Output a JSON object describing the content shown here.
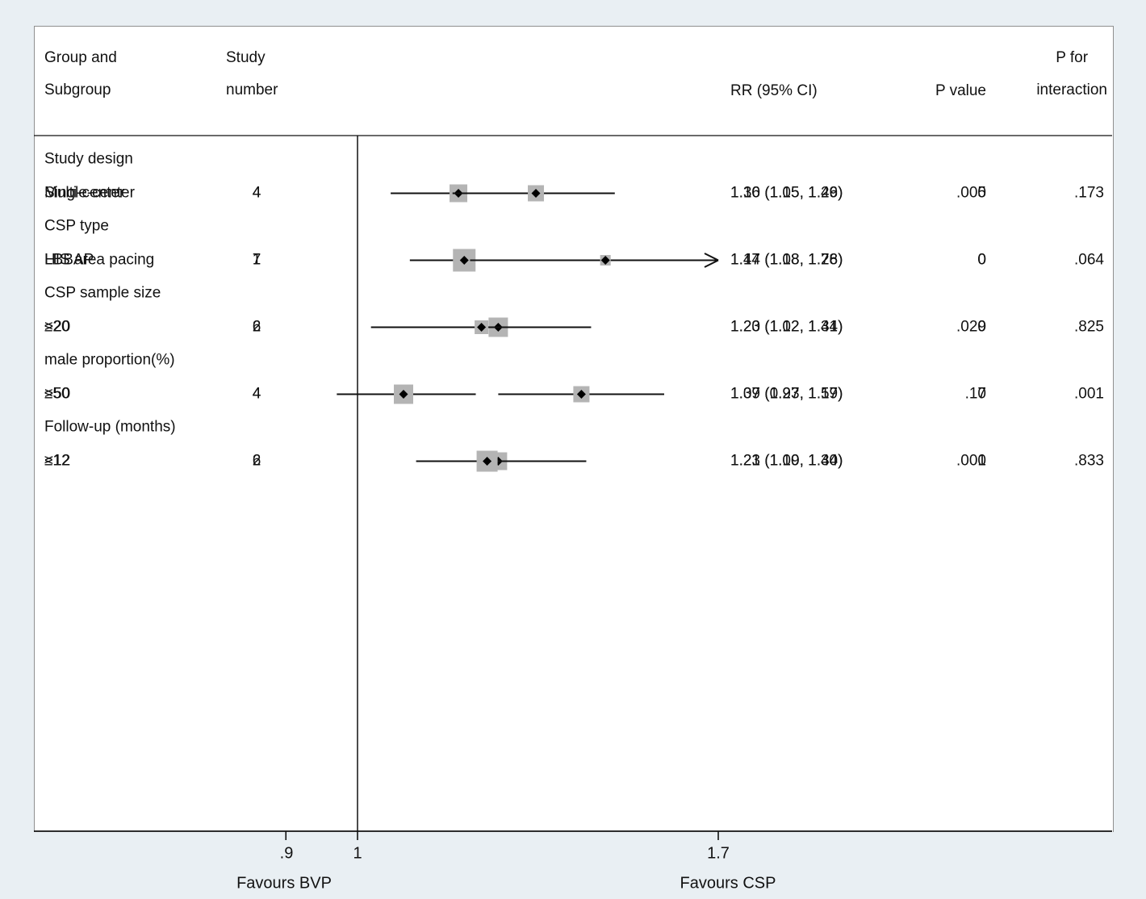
{
  "page": {
    "background": "#e9eff3",
    "panel_border": "#8f8f8f",
    "text_color": "#111111",
    "marker_square_color": "#b4b4b4",
    "line_color": "#111111"
  },
  "header": {
    "group_col_line1": "Group and",
    "group_col_line2": "Subgroup",
    "study_col_line1": "Study",
    "study_col_line2": "number",
    "rr_col": "RR (95% CI)",
    "p_col": "P value",
    "pint_col_line1": "P for",
    "pint_col_line2": "interaction"
  },
  "axis": {
    "ticks": [
      ".9",
      "1",
      "1.7"
    ],
    "left_label": "Favours BVP",
    "right_label": "Favours CSP"
  },
  "chart_data": {
    "type": "forest",
    "x_scale": "log",
    "reference_value": 1,
    "x_tick_values": [
      0.9,
      1,
      1.7
    ],
    "x_tick_labels": [
      ".9",
      "1",
      "1.7"
    ],
    "favours_left": "Favours BVP",
    "favours_right": "Favours CSP",
    "columns": [
      "Group and Subgroup",
      "Study number",
      "RR (95% CI)",
      "P value",
      "P for interaction"
    ],
    "groups": [
      {
        "label": "Study design",
        "p_interaction": ".173",
        "rows": [
          {
            "label": "Multi-center",
            "n": "4",
            "rr": 1.16,
            "lo": 1.05,
            "hi": 1.29,
            "rr_text": "1.16 (1.05, 1.29)",
            "p": ".005",
            "size": 22,
            "arrow": false
          },
          {
            "label": "Single-center",
            "n": "4",
            "rr": 1.3,
            "lo": 1.15,
            "hi": 1.46,
            "rr_text": "1.30 (1.15, 1.46)",
            "p": "0",
            "size": 20,
            "arrow": false
          }
        ]
      },
      {
        "label": "CSP type",
        "p_interaction": ".064",
        "rows": [
          {
            "label": "LBBAP",
            "n": "7",
            "rr": 1.17,
            "lo": 1.08,
            "hi": 1.28,
            "rr_text": "1.17 (1.08, 1.28)",
            "p": "0",
            "size": 28,
            "arrow": false
          },
          {
            "label": "HIS area pacing",
            "n": "1",
            "rr": 1.44,
            "lo": 1.18,
            "hi": 1.76,
            "rr_text": "1.44 (1.18, 1.76)",
            "p": "0",
            "size": 13,
            "arrow": true
          }
        ]
      },
      {
        "label": "CSP sample size",
        "p_interaction": ".825",
        "rows": [
          {
            "label": ">20",
            "n": "6",
            "rr": 1.23,
            "lo": 1.12,
            "hi": 1.34,
            "rr_text": "1.23 (1.12, 1.34)",
            "p": "0",
            "size": 24,
            "arrow": false
          },
          {
            "label": "≤20",
            "n": "2",
            "rr": 1.2,
            "lo": 1.02,
            "hi": 1.41,
            "rr_text": "1.20 (1.02, 1.41)",
            "p": ".029",
            "size": 17,
            "arrow": false
          }
        ]
      },
      {
        "label": "male proportion(%)",
        "p_interaction": ".001",
        "rows": [
          {
            "label": ">50",
            "n": "4",
            "rr": 1.39,
            "lo": 1.23,
            "hi": 1.57,
            "rr_text": "1.39 (1.23, 1.57)",
            "p": "0",
            "size": 20,
            "arrow": false
          },
          {
            "label": "≤50",
            "n": "4",
            "rr": 1.07,
            "lo": 0.97,
            "hi": 1.19,
            "rr_text": "1.07 (0.97, 1.19)",
            "p": ".17",
            "size": 24,
            "arrow": false
          }
        ]
      },
      {
        "label": "Follow-up (months)",
        "p_interaction": ".833",
        "rows": [
          {
            "label": "≥12",
            "n": "2",
            "rr": 1.23,
            "lo": 1.09,
            "hi": 1.4,
            "rr_text": "1.23 (1.09, 1.40)",
            "p": ".001",
            "size": 22,
            "arrow": false
          },
          {
            "label": "<12",
            "n": "6",
            "rr": 1.21,
            "lo": 1.1,
            "hi": 1.34,
            "rr_text": "1.21 (1.10, 1.34)",
            "p": "0",
            "size": 26,
            "arrow": false
          }
        ]
      }
    ]
  }
}
